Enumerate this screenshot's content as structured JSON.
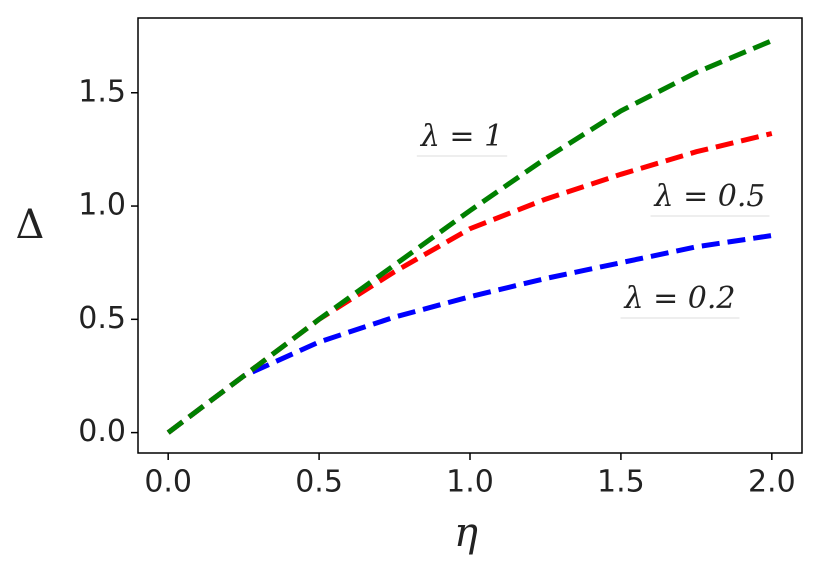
{
  "chart_data": {
    "type": "line",
    "xlabel": "η",
    "ylabel": "Δ",
    "x": [
      0,
      0.25,
      0.5,
      0.75,
      1.0,
      1.25,
      1.5,
      1.75,
      2.0
    ],
    "series": [
      {
        "name": "λ = 1",
        "color": "#008000",
        "label_color": "#4a8a2a",
        "values": [
          0,
          0.25,
          0.5,
          0.74,
          0.98,
          1.21,
          1.42,
          1.59,
          1.73
        ]
      },
      {
        "name": "λ = 0.5",
        "color": "#ff0000",
        "label_color": "#c0601a",
        "values": [
          0,
          0.25,
          0.5,
          0.71,
          0.9,
          1.03,
          1.14,
          1.24,
          1.32
        ]
      },
      {
        "name": "λ = 0.2",
        "color": "#0000ff",
        "label_color": "#2a4aa0",
        "values": [
          0,
          0.25,
          0.4,
          0.51,
          0.6,
          0.68,
          0.75,
          0.82,
          0.87
        ]
      }
    ],
    "xlim": [
      -0.1,
      2.1
    ],
    "ylim": [
      -0.09,
      1.83
    ],
    "xticks": [
      {
        "value": 0,
        "label": "0.0"
      },
      0.5,
      {
        "value": 1,
        "label": "1.0"
      },
      1.5,
      {
        "value": 2,
        "label": "2.0"
      }
    ],
    "yticks": [
      {
        "value": 0,
        "label": "0.0"
      },
      0.5,
      {
        "value": 1,
        "label": "1.0"
      },
      1.5
    ],
    "grid": false
  }
}
